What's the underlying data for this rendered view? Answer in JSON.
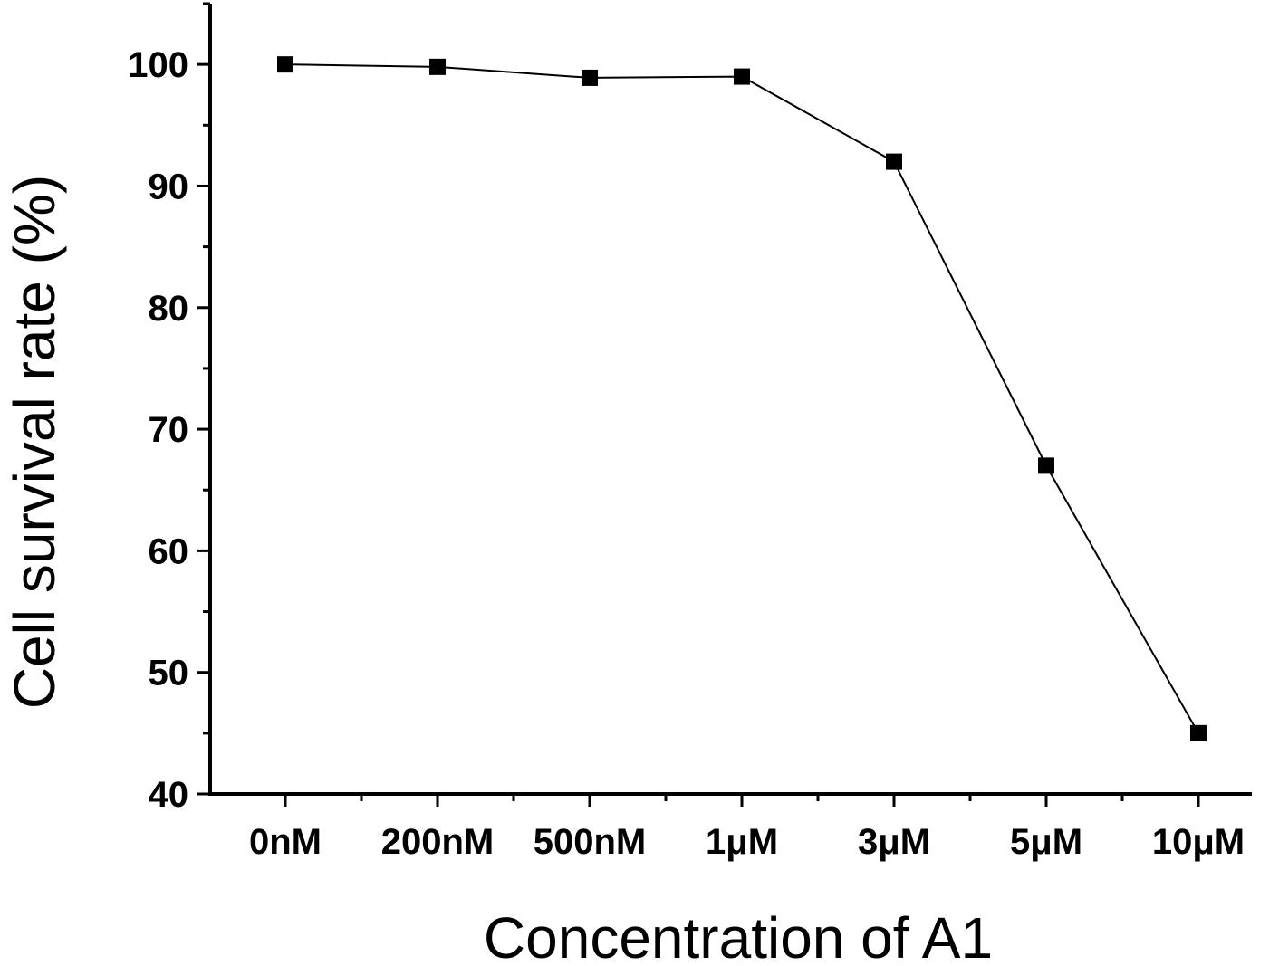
{
  "chart_data": {
    "type": "line",
    "title": "",
    "xlabel": "Concentration of A1",
    "ylabel": "Cell survival rate (%)",
    "categories": [
      "0nM",
      "200nM",
      "500nM",
      "1μM",
      "3μM",
      "5μM",
      "10μM"
    ],
    "series": [
      {
        "values": [
          100,
          99.8,
          98.9,
          99,
          92,
          67,
          45
        ]
      }
    ],
    "ylim": [
      40,
      105
    ],
    "yticks": [
      40,
      50,
      60,
      70,
      80,
      90,
      100
    ],
    "marker": "square",
    "grid": false,
    "line_color": "#000000",
    "marker_color": "#000000"
  }
}
